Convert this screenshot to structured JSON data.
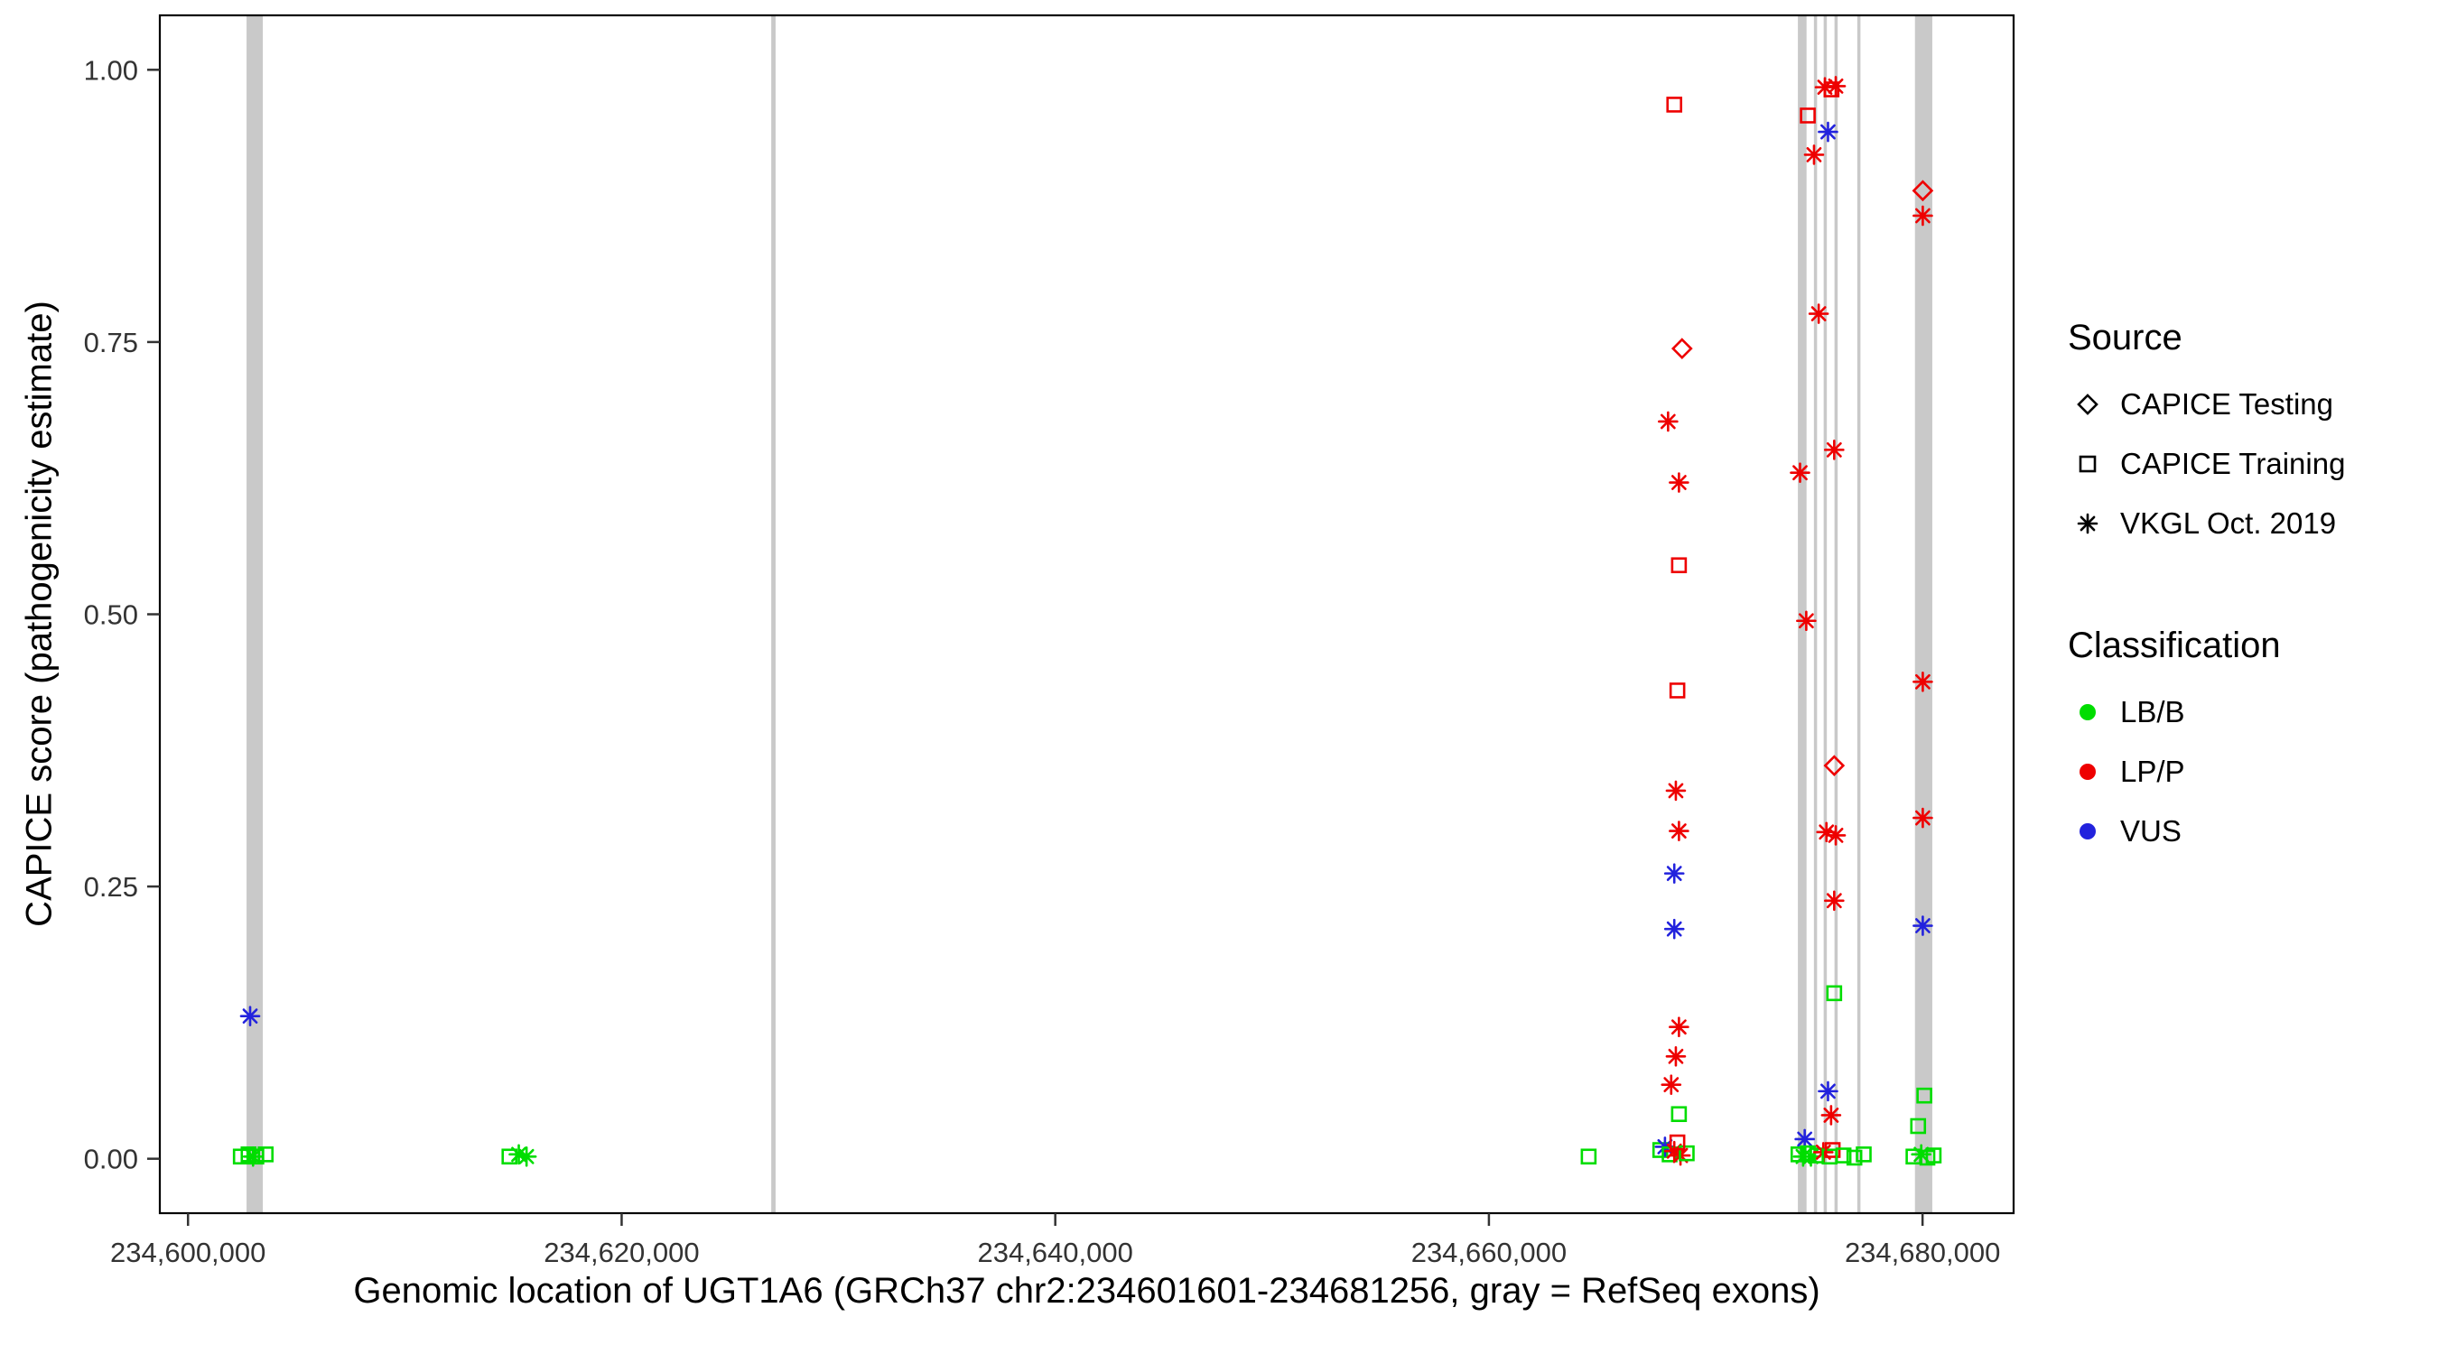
{
  "figure": {
    "background": "#FFFFFF",
    "panel_border_color": "#000000",
    "tick_color": "#333333"
  },
  "chart_data": {
    "type": "scatter",
    "title": "",
    "xlabel": "Genomic location of UGT1A6 (GRCh37 chr2:234601601-234681256, gray = RefSeq exons)",
    "ylabel": "CAPICE score (pathogenicity estimate)",
    "x_domain": [
      234598700,
      234684200
    ],
    "y_domain": [
      -0.05,
      1.05
    ],
    "grid": "off",
    "legend_position": "right",
    "x_ticks": [
      {
        "value": 234600000,
        "label": "234,600,000"
      },
      {
        "value": 234620000,
        "label": "234,620,000"
      },
      {
        "value": 234640000,
        "label": "234,640,000"
      },
      {
        "value": 234660000,
        "label": "234,660,000"
      },
      {
        "value": 234680000,
        "label": "234,680,000"
      }
    ],
    "y_ticks": [
      {
        "value": 0.0,
        "label": "0.00"
      },
      {
        "value": 0.25,
        "label": "0.25"
      },
      {
        "value": 0.5,
        "label": "0.50"
      },
      {
        "value": 0.75,
        "label": "0.75"
      },
      {
        "value": 1.0,
        "label": "1.00"
      }
    ],
    "exon_color": "#C9C9C9",
    "exons": [
      {
        "start": 234602700,
        "end": 234603450
      },
      {
        "start": 234626900,
        "end": 234627100
      },
      {
        "start": 234674250,
        "end": 234674650
      },
      {
        "start": 234674990,
        "end": 234675110
      },
      {
        "start": 234675440,
        "end": 234675560
      },
      {
        "start": 234675940,
        "end": 234676060
      },
      {
        "start": 234676990,
        "end": 234677130
      },
      {
        "start": 234679650,
        "end": 234680450
      }
    ],
    "source_shapes": {
      "test": "diamond",
      "train": "square",
      "vkgl": "asterisk"
    },
    "classification_colors": {
      "LB/B": "#00DD00",
      "LP/P": "#EE0000",
      "VUS": "#2222DD"
    },
    "point_fields": {
      "x": "genomic position (bp)",
      "y": "CAPICE score",
      "s": "source key",
      "c": "classification"
    },
    "points": [
      {
        "x": 234602865,
        "y": 0.131,
        "s": "vkgl",
        "c": "VUS"
      },
      {
        "x": 234602435,
        "y": 0.002,
        "s": "train",
        "c": "LB/B"
      },
      {
        "x": 234602793,
        "y": 0.004,
        "s": "train",
        "c": "LB/B"
      },
      {
        "x": 234603151,
        "y": 0.002,
        "s": "train",
        "c": "LB/B"
      },
      {
        "x": 234603581,
        "y": 0.004,
        "s": "train",
        "c": "LB/B"
      },
      {
        "x": 234603000,
        "y": 0.002,
        "s": "vkgl",
        "c": "LB/B"
      },
      {
        "x": 234614826,
        "y": 0.002,
        "s": "train",
        "c": "LB/B"
      },
      {
        "x": 234615256,
        "y": 0.004,
        "s": "vkgl",
        "c": "LB/B"
      },
      {
        "x": 234615614,
        "y": 0.002,
        "s": "vkgl",
        "c": "LB/B"
      },
      {
        "x": 234664600,
        "y": 0.002,
        "s": "train",
        "c": "LB/B"
      },
      {
        "x": 234668550,
        "y": 0.968,
        "s": "train",
        "c": "LP/P"
      },
      {
        "x": 234668908,
        "y": 0.744,
        "s": "test",
        "c": "LP/P"
      },
      {
        "x": 234668264,
        "y": 0.677,
        "s": "vkgl",
        "c": "LP/P"
      },
      {
        "x": 234668765,
        "y": 0.621,
        "s": "vkgl",
        "c": "LP/P"
      },
      {
        "x": 234668765,
        "y": 0.545,
        "s": "train",
        "c": "LP/P"
      },
      {
        "x": 234668693,
        "y": 0.43,
        "s": "train",
        "c": "LP/P"
      },
      {
        "x": 234668622,
        "y": 0.338,
        "s": "vkgl",
        "c": "LP/P"
      },
      {
        "x": 234668765,
        "y": 0.301,
        "s": "vkgl",
        "c": "LP/P"
      },
      {
        "x": 234668550,
        "y": 0.262,
        "s": "vkgl",
        "c": "VUS"
      },
      {
        "x": 234668550,
        "y": 0.211,
        "s": "vkgl",
        "c": "VUS"
      },
      {
        "x": 234668765,
        "y": 0.121,
        "s": "vkgl",
        "c": "LP/P"
      },
      {
        "x": 234668622,
        "y": 0.094,
        "s": "vkgl",
        "c": "LP/P"
      },
      {
        "x": 234668407,
        "y": 0.068,
        "s": "vkgl",
        "c": "LP/P"
      },
      {
        "x": 234668765,
        "y": 0.041,
        "s": "train",
        "c": "LB/B"
      },
      {
        "x": 234667905,
        "y": 0.008,
        "s": "train",
        "c": "LB/B"
      },
      {
        "x": 234668120,
        "y": 0.011,
        "s": "vkgl",
        "c": "VUS"
      },
      {
        "x": 234668335,
        "y": 0.004,
        "s": "train",
        "c": "LB/B"
      },
      {
        "x": 234668550,
        "y": 0.007,
        "s": "vkgl",
        "c": "LP/P"
      },
      {
        "x": 234668836,
        "y": 0.003,
        "s": "vkgl",
        "c": "LP/P"
      },
      {
        "x": 234669123,
        "y": 0.005,
        "s": "train",
        "c": "LB/B"
      },
      {
        "x": 234668693,
        "y": 0.015,
        "s": "train",
        "c": "LP/P"
      },
      {
        "x": 234674708,
        "y": 0.958,
        "s": "train",
        "c": "LP/P"
      },
      {
        "x": 234675496,
        "y": 0.984,
        "s": "vkgl",
        "c": "LP/P"
      },
      {
        "x": 234675997,
        "y": 0.985,
        "s": "vkgl",
        "c": "LP/P"
      },
      {
        "x": 234675800,
        "y": 0.982,
        "s": "train",
        "c": "LP/P"
      },
      {
        "x": 234675640,
        "y": 0.943,
        "s": "vkgl",
        "c": "VUS"
      },
      {
        "x": 234674995,
        "y": 0.922,
        "s": "vkgl",
        "c": "LP/P"
      },
      {
        "x": 234675210,
        "y": 0.776,
        "s": "vkgl",
        "c": "LP/P"
      },
      {
        "x": 234675926,
        "y": 0.651,
        "s": "vkgl",
        "c": "LP/P"
      },
      {
        "x": 234674350,
        "y": 0.63,
        "s": "vkgl",
        "c": "LP/P"
      },
      {
        "x": 234674637,
        "y": 0.494,
        "s": "vkgl",
        "c": "LP/P"
      },
      {
        "x": 234675926,
        "y": 0.361,
        "s": "test",
        "c": "LP/P"
      },
      {
        "x": 234675567,
        "y": 0.3,
        "s": "vkgl",
        "c": "LP/P"
      },
      {
        "x": 234675997,
        "y": 0.297,
        "s": "vkgl",
        "c": "LP/P"
      },
      {
        "x": 234675926,
        "y": 0.237,
        "s": "vkgl",
        "c": "LP/P"
      },
      {
        "x": 234675926,
        "y": 0.152,
        "s": "train",
        "c": "LB/B"
      },
      {
        "x": 234675640,
        "y": 0.062,
        "s": "vkgl",
        "c": "VUS"
      },
      {
        "x": 234675782,
        "y": 0.04,
        "s": "vkgl",
        "c": "LP/P"
      },
      {
        "x": 234674565,
        "y": 0.018,
        "s": "vkgl",
        "c": "VUS"
      },
      {
        "x": 234674278,
        "y": 0.004,
        "s": "train",
        "c": "LB/B"
      },
      {
        "x": 234674492,
        "y": 0.002,
        "s": "vkgl",
        "c": "LB/B"
      },
      {
        "x": 234674708,
        "y": 0.005,
        "s": "train",
        "c": "LB/B"
      },
      {
        "x": 234674852,
        "y": 0.002,
        "s": "vkgl",
        "c": "LB/B"
      },
      {
        "x": 234675138,
        "y": 0.003,
        "s": "train",
        "c": "LB/B"
      },
      {
        "x": 234675425,
        "y": 0.006,
        "s": "vkgl",
        "c": "LP/P"
      },
      {
        "x": 234675711,
        "y": 0.002,
        "s": "train",
        "c": "LB/B"
      },
      {
        "x": 234675854,
        "y": 0.008,
        "s": "train",
        "c": "LP/P"
      },
      {
        "x": 234676356,
        "y": 0.003,
        "s": "train",
        "c": "LB/B"
      },
      {
        "x": 234676857,
        "y": 0.001,
        "s": "train",
        "c": "LB/B"
      },
      {
        "x": 234677287,
        "y": 0.004,
        "s": "train",
        "c": "LB/B"
      },
      {
        "x": 234680011,
        "y": 0.889,
        "s": "test",
        "c": "LP/P"
      },
      {
        "x": 234680011,
        "y": 0.866,
        "s": "vkgl",
        "c": "LP/P"
      },
      {
        "x": 234680011,
        "y": 0.438,
        "s": "vkgl",
        "c": "LP/P"
      },
      {
        "x": 234680011,
        "y": 0.313,
        "s": "vkgl",
        "c": "LP/P"
      },
      {
        "x": 234680011,
        "y": 0.214,
        "s": "vkgl",
        "c": "VUS"
      },
      {
        "x": 234680082,
        "y": 0.058,
        "s": "train",
        "c": "LB/B"
      },
      {
        "x": 234679796,
        "y": 0.03,
        "s": "train",
        "c": "LB/B"
      },
      {
        "x": 234679582,
        "y": 0.002,
        "s": "train",
        "c": "LB/B"
      },
      {
        "x": 234679939,
        "y": 0.004,
        "s": "vkgl",
        "c": "LB/B"
      },
      {
        "x": 234680225,
        "y": 0.001,
        "s": "train",
        "c": "LB/B"
      },
      {
        "x": 234680511,
        "y": 0.003,
        "s": "train",
        "c": "LB/B"
      }
    ]
  },
  "legend": {
    "source": {
      "title": "Source",
      "items": [
        {
          "label": "CAPICE Testing",
          "shape": "diamond"
        },
        {
          "label": "CAPICE Training",
          "shape": "square"
        },
        {
          "label": "VKGL Oct. 2019",
          "shape": "asterisk"
        }
      ]
    },
    "classification": {
      "title": "Classification",
      "items": [
        {
          "label": "LB/B",
          "color": "#00DD00"
        },
        {
          "label": "LP/P",
          "color": "#EE0000"
        },
        {
          "label": "VUS",
          "color": "#2222DD"
        }
      ]
    }
  }
}
